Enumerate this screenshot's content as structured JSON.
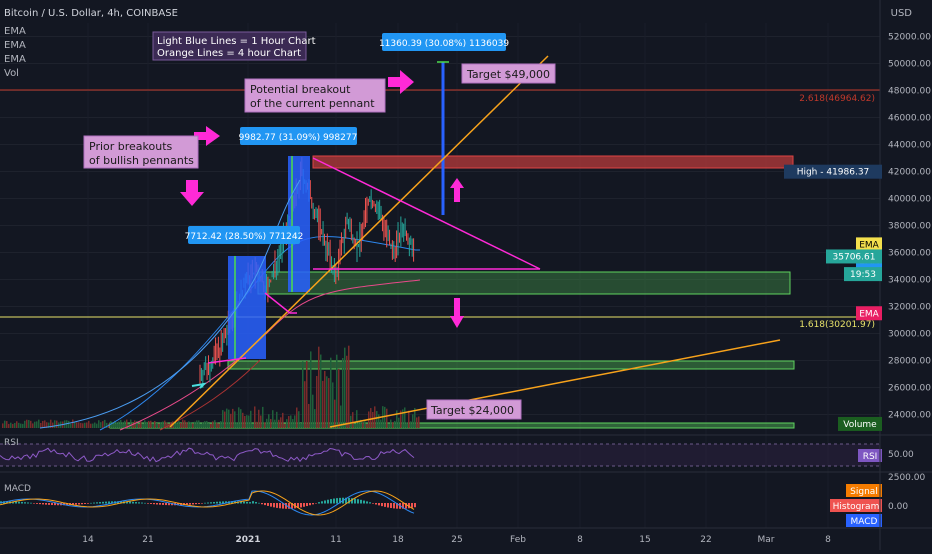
{
  "header": {
    "title": "Bitcoin / U.S. Dollar, 4h, COINBASE",
    "indicators": [
      "EMA",
      "EMA",
      "EMA",
      "Vol"
    ],
    "currency": "USD"
  },
  "chart_data": {
    "type": "line",
    "price_axis": {
      "ticks": [
        24000,
        26000,
        28000,
        30000,
        32000,
        34000,
        36000,
        38000,
        40000,
        42000,
        44000,
        46000,
        48000,
        50000,
        52000
      ],
      "tick_labels": [
        "24000.00",
        "26000.00",
        "28000.00",
        "30000.00",
        "32000.00",
        "34000.00",
        "36000.00",
        "38000.00",
        "40000.00",
        "42000.00",
        "44000.00",
        "46000.00",
        "48000.00",
        "50000.00",
        "52000.00"
      ],
      "range": [
        22000,
        53500
      ]
    },
    "time_axis": {
      "labels": [
        "14",
        "21",
        "2021",
        "11",
        "18",
        "25",
        "Feb",
        "8",
        "15",
        "22",
        "Mar",
        "8"
      ]
    },
    "fib_levels": [
      {
        "label": "2.618(46964.62)",
        "value": 46964.62
      },
      {
        "label": "1.618(30201.97)",
        "value": 30201.97
      }
    ],
    "price_tags": [
      {
        "label": "High - 41986.37",
        "value": 41986.37
      },
      {
        "label": "EMA",
        "value": 36600
      },
      {
        "label": "EMA",
        "value": 35400
      },
      {
        "label": "35706.61",
        "value": 35706.61
      },
      {
        "label": "19:53",
        "value": 34400
      },
      {
        "label": "EMA",
        "value": 31500
      },
      {
        "label": "Volume",
        "value": 23300
      }
    ],
    "measurements": [
      {
        "label": "7712.42 (28.50%) 771242",
        "from": 27000,
        "to": 35000
      },
      {
        "label": "9982.77 (31.09%) 998277",
        "from": 32000,
        "to": 42000
      },
      {
        "label": "11360.39 (30.08%) 1136039",
        "from": 37800,
        "to": 49200
      }
    ],
    "zones": [
      {
        "name": "resistance",
        "from": 41000,
        "to": 41900
      },
      {
        "name": "support",
        "from": 32000,
        "to": 33600
      },
      {
        "name": "lower support",
        "from": 26600,
        "to": 27100
      },
      {
        "name": "bottom support",
        "from": 22000,
        "to": 22400
      }
    ],
    "price_path": [
      [
        27000,
        27800,
        29200,
        31500,
        33800,
        34600,
        33200,
        35900,
        38400,
        41900,
        39500,
        37000,
        34200,
        38300,
        36400,
        40100,
        38800,
        35900,
        37900,
        36300
      ]
    ]
  },
  "annotations": {
    "legend_line1": "Light Blue Lines = 1 Hour Chart",
    "legend_line2": "Orange Lines = 4 hour Chart",
    "prior_line1": "Prior breakouts",
    "prior_line2": "of bullish pennants",
    "potential_line1": "Potential breakout",
    "potential_line2": "of the current pennant",
    "target_high": "Target $49,000",
    "target_low": "Target $24,000"
  },
  "rsi": {
    "label": "RSI",
    "tag": "RSI",
    "ticks": [
      "50.00"
    ]
  },
  "macd": {
    "label": "MACD",
    "ticks": [
      "2500.00",
      "0.00"
    ],
    "tags": [
      "Signal",
      "Histogram",
      "MACD"
    ]
  },
  "colors": {
    "background": "#131722",
    "axis_text": "#b2b5be",
    "orange_line": "#f7a21b",
    "blue_line": "#2d88f0",
    "magenta": "#ff2ad7",
    "green_zone": "#4caf50",
    "red_zone": "#d44",
    "annotation_bg": "#d29ad6",
    "measure_blue": "#2962ff"
  }
}
